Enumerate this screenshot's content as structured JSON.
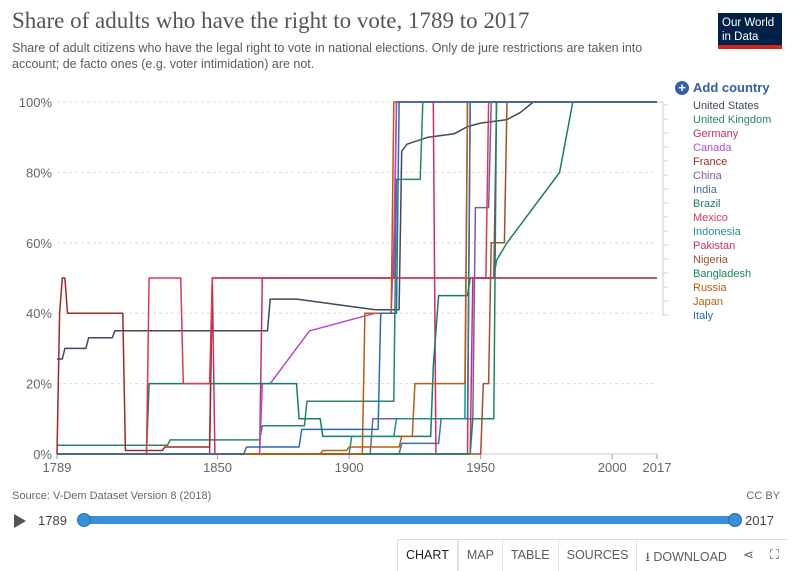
{
  "header": {
    "title": "Share of adults who have the right to vote, 1789 to 2017",
    "subtitle": "Share of adult citizens who have the legal right to vote in national elections. Only de jure restrictions are taken into account; de facto ones (e.g. voter intimidation) are not.",
    "logo_line1": "Our World",
    "logo_line2": "in Data"
  },
  "add_country_label": "Add country",
  "footer": {
    "source": "Source: V-Dem Dataset Version 8 (2018)",
    "license": "CC BY"
  },
  "timeline": {
    "start": "1789",
    "end": "2017"
  },
  "tabs": [
    {
      "label": "CHART",
      "active": true
    },
    {
      "label": "MAP"
    },
    {
      "label": "TABLE"
    },
    {
      "label": "SOURCES"
    },
    {
      "label": "DOWNLOAD"
    }
  ],
  "icons": {
    "download": "download-icon",
    "share": "share-icon",
    "fullscreen": "fullscreen-icon",
    "add": "plus-circle-icon",
    "play": "play-icon"
  },
  "chart_data": {
    "type": "line",
    "title": "Share of adults who have the right to vote, 1789 to 2017",
    "xlabel": "",
    "ylabel": "",
    "xlim": [
      1789,
      2017
    ],
    "ylim": [
      0,
      100
    ],
    "x_ticks": [
      1789,
      1850,
      1900,
      1950,
      2000,
      2017
    ],
    "y_ticks": [
      0,
      20,
      40,
      60,
      80,
      100
    ],
    "y_tick_labels": [
      "0%",
      "20%",
      "40%",
      "60%",
      "80%",
      "100%"
    ],
    "grid": "horizontal dashed",
    "legend_position": "right",
    "series": [
      {
        "name": "United States",
        "color": "#3d4a5e",
        "points": [
          [
            1789,
            27
          ],
          [
            1791,
            27
          ],
          [
            1792,
            30
          ],
          [
            1800,
            30
          ],
          [
            1801,
            33
          ],
          [
            1810,
            33
          ],
          [
            1811,
            35
          ],
          [
            1860,
            35
          ],
          [
            1869,
            35
          ],
          [
            1870,
            44
          ],
          [
            1880,
            44
          ],
          [
            1890,
            43
          ],
          [
            1900,
            42
          ],
          [
            1910,
            41
          ],
          [
            1919,
            41
          ],
          [
            1920,
            86
          ],
          [
            1922,
            88
          ],
          [
            1926,
            89
          ],
          [
            1930,
            90
          ],
          [
            1940,
            91
          ],
          [
            1945,
            93
          ],
          [
            1950,
            94
          ],
          [
            1960,
            95
          ],
          [
            1965,
            97
          ],
          [
            1970,
            100
          ],
          [
            2017,
            100
          ]
        ]
      },
      {
        "name": "United Kingdom",
        "color": "#2c8465",
        "points": [
          [
            1789,
            2.5
          ],
          [
            1831,
            2.5
          ],
          [
            1832,
            4
          ],
          [
            1866,
            4
          ],
          [
            1867,
            8
          ],
          [
            1883,
            8
          ],
          [
            1884,
            15
          ],
          [
            1917,
            15
          ],
          [
            1918,
            78
          ],
          [
            1927,
            78
          ],
          [
            1928,
            100
          ],
          [
            2017,
            100
          ]
        ]
      },
      {
        "name": "Germany",
        "color": "#c4316e",
        "points": [
          [
            1789,
            0
          ],
          [
            1847,
            0
          ],
          [
            1848,
            50
          ],
          [
            1849,
            0
          ],
          [
            1866,
            0
          ],
          [
            1867,
            50
          ],
          [
            1917,
            50
          ],
          [
            1918,
            100
          ],
          [
            1932,
            100
          ],
          [
            1933,
            0
          ],
          [
            1945,
            0
          ],
          [
            1946,
            100
          ],
          [
            2017,
            100
          ]
        ]
      },
      {
        "name": "Canada",
        "color": "#b24acb",
        "points": [
          [
            1789,
            0
          ],
          [
            1866,
            0
          ],
          [
            1867,
            20
          ],
          [
            1870,
            20
          ],
          [
            1885,
            35
          ],
          [
            1890,
            36
          ],
          [
            1900,
            38
          ],
          [
            1910,
            40
          ],
          [
            1916,
            40
          ],
          [
            1917,
            60
          ],
          [
            1918,
            100
          ],
          [
            2017,
            100
          ]
        ]
      },
      {
        "name": "France",
        "color": "#962d2d",
        "points": [
          [
            1789,
            0
          ],
          [
            1790,
            40
          ],
          [
            1791,
            50
          ],
          [
            1792,
            50
          ],
          [
            1793,
            40
          ],
          [
            1814,
            40
          ],
          [
            1815,
            1
          ],
          [
            1829,
            1
          ],
          [
            1830,
            2
          ],
          [
            1847,
            2
          ],
          [
            1848,
            50
          ],
          [
            2017,
            50
          ]
        ]
      },
      {
        "name": "China",
        "color": "#7c5aa6",
        "points": [
          [
            1789,
            0
          ],
          [
            1908,
            0
          ],
          [
            1909,
            10
          ],
          [
            1947,
            10
          ],
          [
            1948,
            70
          ],
          [
            1953,
            70
          ],
          [
            1954,
            100
          ],
          [
            2017,
            100
          ]
        ]
      },
      {
        "name": "India",
        "color": "#486ba0",
        "points": [
          [
            1789,
            0
          ],
          [
            1919,
            0
          ],
          [
            1920,
            3
          ],
          [
            1934,
            3
          ],
          [
            1935,
            10
          ],
          [
            1945,
            10
          ],
          [
            1946,
            100
          ],
          [
            2017,
            100
          ]
        ]
      },
      {
        "name": "Brazil",
        "color": "#1c7b68",
        "points": [
          [
            1789,
            0
          ],
          [
            1823,
            0
          ],
          [
            1824,
            20
          ],
          [
            1880,
            20
          ],
          [
            1881,
            10
          ],
          [
            1889,
            10
          ],
          [
            1890,
            5
          ],
          [
            1931,
            5
          ],
          [
            1932,
            25
          ],
          [
            1934,
            45
          ],
          [
            1945,
            45
          ],
          [
            1946,
            50
          ],
          [
            1955,
            50
          ],
          [
            1956,
            55
          ],
          [
            1960,
            60
          ],
          [
            1965,
            65
          ],
          [
            1970,
            70
          ],
          [
            1975,
            75
          ],
          [
            1980,
            80
          ],
          [
            1985,
            100
          ],
          [
            2017,
            100
          ]
        ]
      },
      {
        "name": "Mexico",
        "color": "#d73c50",
        "points": [
          [
            1789,
            0
          ],
          [
            1823,
            0
          ],
          [
            1824,
            50
          ],
          [
            1836,
            50
          ],
          [
            1837,
            20
          ],
          [
            1847,
            20
          ],
          [
            1848,
            50
          ],
          [
            1952,
            50
          ],
          [
            1953,
            100
          ],
          [
            2017,
            100
          ]
        ]
      },
      {
        "name": "Indonesia",
        "color": "#1e8f8f",
        "points": [
          [
            1789,
            0
          ],
          [
            1900,
            0
          ],
          [
            1901,
            5
          ],
          [
            1917,
            5
          ],
          [
            1918,
            10
          ],
          [
            1944,
            10
          ],
          [
            1945,
            100
          ],
          [
            2017,
            100
          ]
        ]
      },
      {
        "name": "Pakistan",
        "color": "#c4316e",
        "points": [
          [
            1789,
            0
          ],
          [
            1946,
            0
          ],
          [
            1947,
            50
          ],
          [
            1955,
            50
          ],
          [
            1956,
            100
          ],
          [
            2017,
            100
          ]
        ]
      },
      {
        "name": "Nigeria",
        "color": "#a0522d",
        "points": [
          [
            1789,
            0
          ],
          [
            1950,
            0
          ],
          [
            1951,
            20
          ],
          [
            1953,
            20
          ],
          [
            1954,
            60
          ],
          [
            1959,
            60
          ],
          [
            1960,
            100
          ],
          [
            2017,
            100
          ]
        ]
      },
      {
        "name": "Bangladesh",
        "color": "#19875b",
        "points": [
          [
            1789,
            0
          ],
          [
            1946,
            0
          ],
          [
            1947,
            10
          ],
          [
            1955,
            10
          ],
          [
            1956,
            100
          ],
          [
            2017,
            100
          ]
        ]
      },
      {
        "name": "Russia",
        "color": "#be5915",
        "points": [
          [
            1789,
            0
          ],
          [
            1905,
            0
          ],
          [
            1906,
            40
          ],
          [
            1916,
            40
          ],
          [
            1917,
            100
          ],
          [
            2017,
            100
          ]
        ]
      },
      {
        "name": "Japan",
        "color": "#b16214",
        "points": [
          [
            1789,
            0
          ],
          [
            1889,
            0
          ],
          [
            1890,
            1
          ],
          [
            1899,
            1
          ],
          [
            1900,
            2
          ],
          [
            1919,
            2
          ],
          [
            1920,
            5
          ],
          [
            1924,
            5
          ],
          [
            1925,
            20
          ],
          [
            1944,
            20
          ],
          [
            1945,
            100
          ],
          [
            2017,
            100
          ]
        ]
      },
      {
        "name": "Italy",
        "color": "#2b6cb0",
        "points": [
          [
            1789,
            0
          ],
          [
            1860,
            0
          ],
          [
            1861,
            2
          ],
          [
            1881,
            2
          ],
          [
            1882,
            7
          ],
          [
            1911,
            7
          ],
          [
            1912,
            40
          ],
          [
            1918,
            40
          ],
          [
            1919,
            100
          ],
          [
            2017,
            100
          ]
        ]
      }
    ]
  }
}
